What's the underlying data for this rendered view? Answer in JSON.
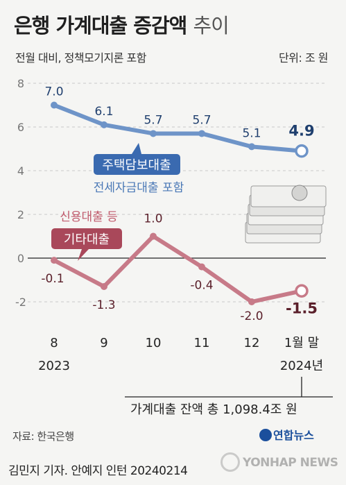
{
  "header": {
    "title_main": "은행 가계대출 증감액",
    "title_light": "추이",
    "subtitle": "전월 대비, 정책모기지론 포함",
    "unit": "단위: 조 원"
  },
  "chart_data": {
    "type": "line",
    "categories": [
      "8",
      "9",
      "10",
      "11",
      "12",
      "1월 말"
    ],
    "year_labels": [
      "2023",
      "2024년"
    ],
    "yticks": [
      "8",
      "6",
      "4",
      "2",
      "0",
      "-2"
    ],
    "ylim": [
      -2.8,
      8
    ],
    "series": [
      {
        "name": "주택담보대출",
        "note": "전세자금대출 포함",
        "color": "#6e94c8",
        "label_color": "#1f3f6e",
        "box_color": "#3a6ab0",
        "values": [
          7.0,
          6.1,
          5.7,
          5.7,
          5.1,
          4.9
        ],
        "value_labels": [
          "7.0",
          "6.1",
          "5.7",
          "5.7",
          "5.1",
          "4.9"
        ]
      },
      {
        "name": "기타대출",
        "note": "신용대출 등",
        "color": "#c77a88",
        "label_color": "#5a1f2a",
        "box_color": "#a9485a",
        "values": [
          -0.1,
          -1.3,
          1.0,
          -0.4,
          -2.0,
          -1.5
        ],
        "value_labels": [
          "-0.1",
          "-1.3",
          "1.0",
          "-0.4",
          "-2.0",
          "-1.5"
        ]
      }
    ],
    "annotation": "가계대출 잔액 총 1,098.4조 원"
  },
  "footer": {
    "source": "자료: 한국은행",
    "credit": "김민지 기자. 안예지 인턴  20240214",
    "logo": "연합뉴스",
    "watermark": "YONHAP NEWS"
  }
}
